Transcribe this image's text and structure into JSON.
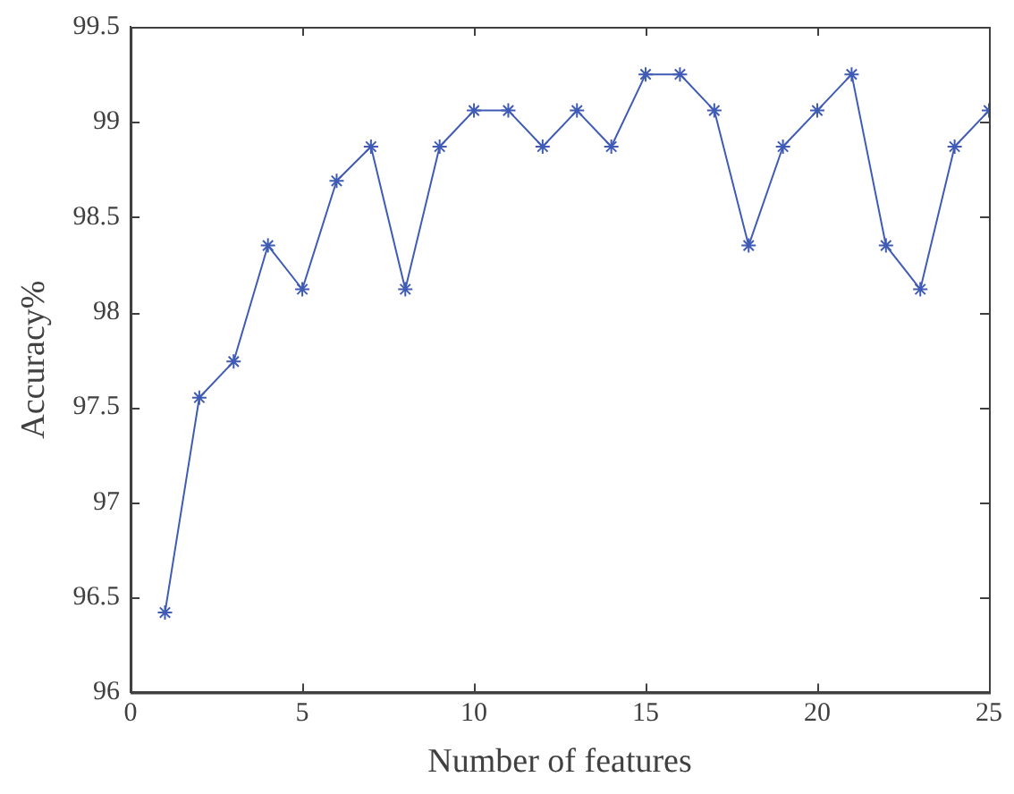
{
  "chart_data": {
    "type": "line",
    "xlabel": "Number of features",
    "ylabel": "Accuracy%",
    "x": [
      1,
      2,
      3,
      4,
      5,
      6,
      7,
      8,
      9,
      10,
      11,
      12,
      13,
      14,
      15,
      16,
      17,
      18,
      19,
      20,
      21,
      22,
      23,
      24,
      25
    ],
    "series": [
      {
        "color": "#3f5bb5",
        "values": [
          96.42,
          97.55,
          97.74,
          98.35,
          98.12,
          98.69,
          98.87,
          98.12,
          98.87,
          99.06,
          99.06,
          98.87,
          99.06,
          98.87,
          99.25,
          99.25,
          99.06,
          98.35,
          98.87,
          99.06,
          99.25,
          98.35,
          98.12,
          98.87,
          99.06
        ]
      }
    ],
    "xlim": [
      0,
      25
    ],
    "xticks": [
      0,
      5,
      10,
      15,
      20,
      25
    ],
    "ylim": [
      96,
      99.5
    ],
    "yticks": [
      96,
      96.5,
      97,
      97.5,
      98,
      98.5,
      99,
      99.5
    ],
    "grid": false,
    "legend": false,
    "marker": "cross",
    "line_style": "solid"
  }
}
